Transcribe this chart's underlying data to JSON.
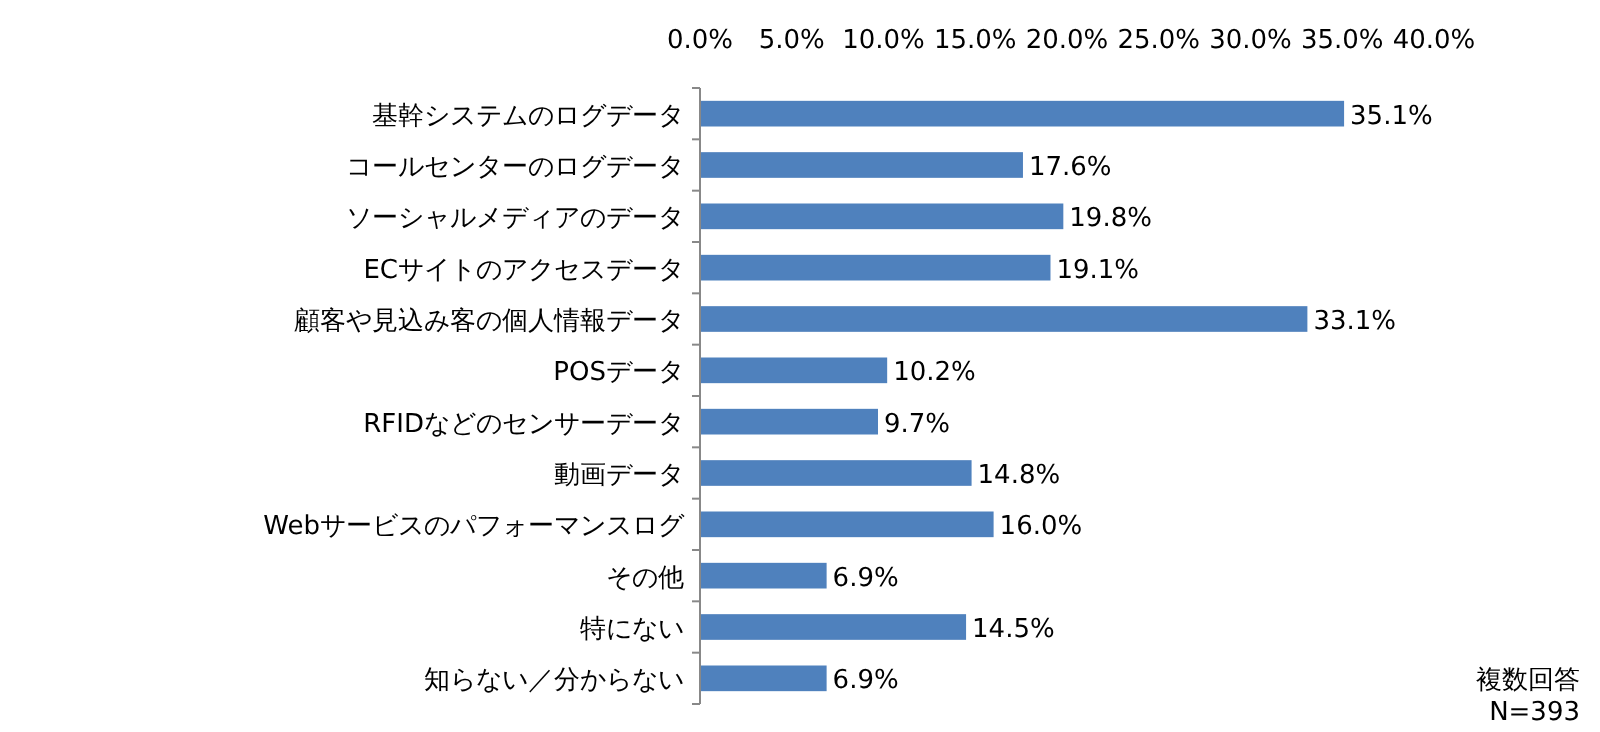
{
  "chart_data": {
    "type": "bar",
    "orientation": "horizontal",
    "categories": [
      "基幹システムのログデータ",
      "コールセンターのログデータ",
      "ソーシャルメディアのデータ",
      "ECサイトのアクセスデータ",
      "顧客や見込み客の個人情報データ",
      "POSデータ",
      "RFIDなどのセンサーデータ",
      "動画データ",
      "Webサービスのパフォーマンスログ",
      "その他",
      "特にない",
      "知らない／分からない"
    ],
    "values": [
      35.1,
      17.6,
      19.8,
      19.1,
      33.1,
      10.2,
      9.7,
      14.8,
      16.0,
      6.9,
      14.5,
      6.9
    ],
    "value_labels": [
      "35.1%",
      "17.6%",
      "19.8%",
      "19.1%",
      "33.1%",
      "10.2%",
      "9.7%",
      "14.8%",
      "16.0%",
      "6.9%",
      "14.5%",
      "6.9%"
    ],
    "color": "#4f81bd",
    "xlim": [
      0,
      40
    ],
    "xticks": [
      {
        "value": 0,
        "label": "0.0%"
      },
      {
        "value": 5,
        "label": "5.0%"
      },
      {
        "value": 10,
        "label": "10.0%"
      },
      {
        "value": 15,
        "label": "15.0%"
      },
      {
        "value": 20,
        "label": "20.0%"
      },
      {
        "value": 25,
        "label": "25.0%"
      },
      {
        "value": 30,
        "label": "30.0%"
      },
      {
        "value": 35,
        "label": "35.0%"
      },
      {
        "value": 40,
        "label": "40.0%"
      }
    ],
    "grid": false,
    "annotations": [
      "複数回答",
      "N=393"
    ]
  }
}
